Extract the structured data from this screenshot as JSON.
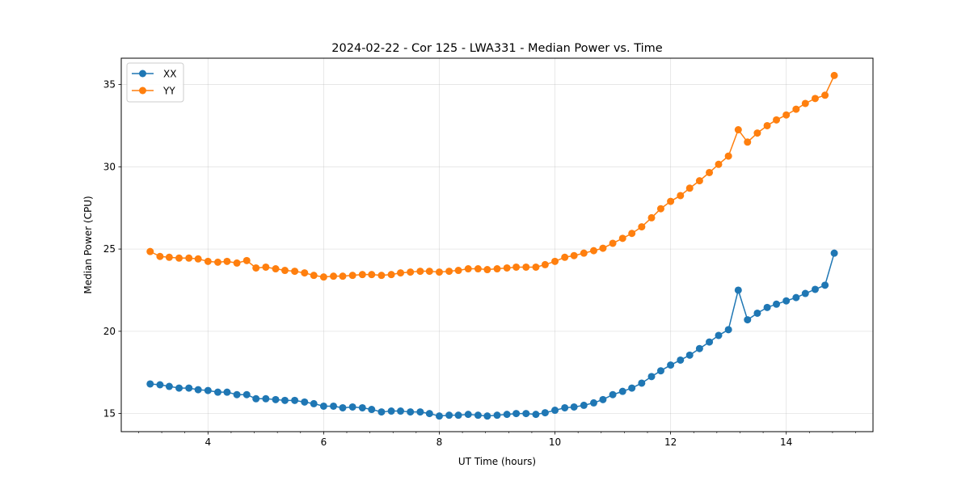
{
  "chart_data": {
    "type": "line",
    "title": "2024-02-22 - Cor 125 - LWA331 - Median Power vs. Time",
    "xlabel": "UT Time (hours)",
    "ylabel": "Median Power (CPU)",
    "xlim": [
      2.5,
      15.5
    ],
    "ylim": [
      13.9,
      36.6
    ],
    "xticks": [
      4,
      6,
      8,
      10,
      12,
      14
    ],
    "xtick_labels": [
      "4",
      "6",
      "8",
      "10",
      "12",
      "14"
    ],
    "x_minor_step": 0.4,
    "yticks": [
      15,
      20,
      25,
      30,
      35
    ],
    "ytick_labels": [
      "15",
      "20",
      "25",
      "30",
      "35"
    ],
    "grid": true,
    "legend_position": "top-left",
    "x": [
      3.0,
      3.17,
      3.33,
      3.5,
      3.67,
      3.83,
      4.0,
      4.17,
      4.33,
      4.5,
      4.67,
      4.83,
      5.0,
      5.17,
      5.33,
      5.5,
      5.67,
      5.83,
      6.0,
      6.17,
      6.33,
      6.5,
      6.67,
      6.83,
      7.0,
      7.17,
      7.33,
      7.5,
      7.67,
      7.83,
      8.0,
      8.17,
      8.33,
      8.5,
      8.67,
      8.83,
      9.0,
      9.17,
      9.33,
      9.5,
      9.67,
      9.83,
      10.0,
      10.17,
      10.33,
      10.5,
      10.67,
      10.83,
      11.0,
      11.17,
      11.33,
      11.5,
      11.67,
      11.83,
      12.0,
      12.17,
      12.33,
      12.5,
      12.67,
      12.83,
      13.0,
      13.17,
      13.33,
      13.5,
      13.67,
      13.83,
      14.0,
      14.17,
      14.33,
      14.5,
      14.67,
      14.83
    ],
    "series": [
      {
        "name": "XX",
        "color": "#1f77b4",
        "values": [
          16.8,
          16.75,
          16.65,
          16.55,
          16.55,
          16.45,
          16.4,
          16.3,
          16.3,
          16.15,
          16.15,
          15.9,
          15.9,
          15.85,
          15.8,
          15.8,
          15.7,
          15.6,
          15.45,
          15.45,
          15.35,
          15.4,
          15.35,
          15.25,
          15.1,
          15.15,
          15.15,
          15.1,
          15.1,
          15.0,
          14.85,
          14.9,
          14.9,
          14.95,
          14.9,
          14.85,
          14.9,
          14.95,
          15.0,
          15.0,
          14.95,
          15.05,
          15.2,
          15.35,
          15.4,
          15.5,
          15.65,
          15.85,
          16.15,
          16.35,
          16.55,
          16.85,
          17.25,
          17.6,
          17.95,
          18.25,
          18.55,
          18.95,
          19.35,
          19.75,
          20.1,
          22.5,
          20.7,
          21.1,
          21.45,
          21.65,
          21.85,
          22.05,
          22.3,
          22.55,
          22.8,
          24.75
        ]
      },
      {
        "name": "YY",
        "color": "#ff7f0e",
        "values": [
          24.85,
          24.55,
          24.5,
          24.45,
          24.45,
          24.4,
          24.25,
          24.2,
          24.25,
          24.15,
          24.3,
          23.85,
          23.9,
          23.8,
          23.7,
          23.65,
          23.55,
          23.4,
          23.3,
          23.35,
          23.35,
          23.4,
          23.45,
          23.45,
          23.4,
          23.45,
          23.55,
          23.6,
          23.65,
          23.65,
          23.6,
          23.65,
          23.7,
          23.8,
          23.8,
          23.75,
          23.8,
          23.85,
          23.9,
          23.9,
          23.9,
          24.05,
          24.25,
          24.5,
          24.6,
          24.75,
          24.9,
          25.05,
          25.35,
          25.65,
          25.95,
          26.35,
          26.9,
          27.45,
          27.9,
          28.25,
          28.7,
          29.15,
          29.65,
          30.15,
          30.65,
          32.25,
          31.5,
          32.05,
          32.5,
          32.85,
          33.15,
          33.5,
          33.85,
          34.15,
          34.35,
          35.55
        ]
      }
    ]
  }
}
